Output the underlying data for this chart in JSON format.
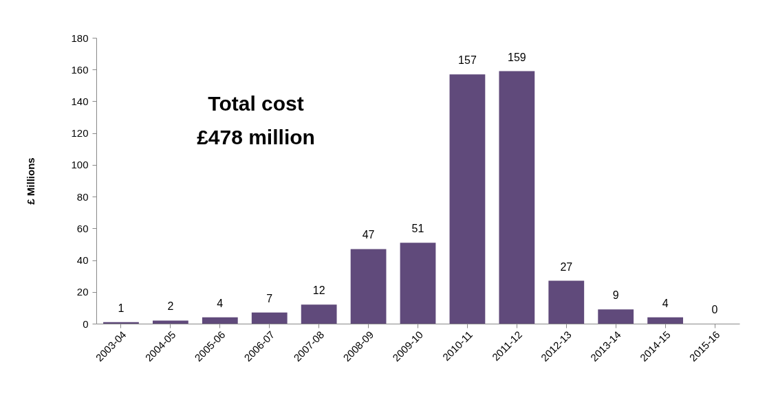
{
  "chart_data": {
    "type": "bar",
    "ylabel": "£ Millions",
    "categories": [
      "2003-04",
      "2004-05",
      "2005-06",
      "2006-07",
      "2007-08",
      "2008-09",
      "2009-10",
      "2010-11",
      "2011-12",
      "2012-13",
      "2013-14",
      "2014-15",
      "2015-16"
    ],
    "values": [
      1,
      2,
      4,
      7,
      12,
      47,
      51,
      157,
      159,
      27,
      9,
      4,
      0
    ],
    "color": "#604a7b",
    "ylim": [
      0,
      180
    ],
    "yticks": [
      0,
      20,
      40,
      60,
      80,
      100,
      120,
      140,
      160,
      180
    ],
    "grid": false,
    "data_labels": true,
    "annotations": [
      "Total cost",
      "£478 million"
    ]
  }
}
